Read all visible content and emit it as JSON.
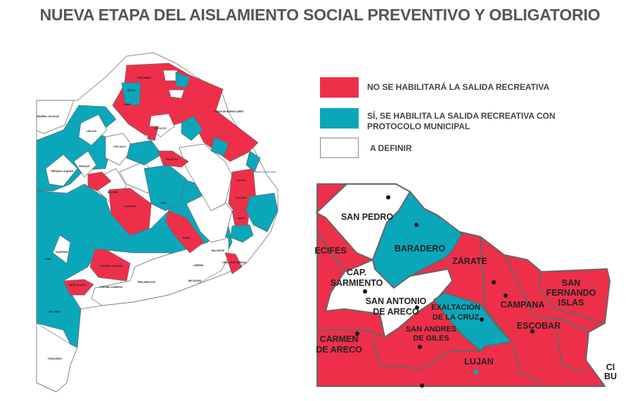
{
  "title": "NUEVA ETAPA DEL AISLAMIENTO SOCIAL PREVENTIVO Y OBLIGATORIO",
  "colors": {
    "red": "#ee2f4a",
    "teal": "#0aa7ba",
    "white": "#ffffff",
    "border": "#666666"
  },
  "legend": [
    {
      "label": "NO SE HABILITARÁ LA SALIDA RECREATIVA",
      "color": "#ee2f4a"
    },
    {
      "label_line1": "SÍ, SE HABILITA LA SALIDA RECREATIVA CON",
      "label_line2": "PROTOCOLO MUNICIPAL",
      "color": "#0aa7ba"
    },
    {
      "label": "A DEFINIR",
      "color": "#ffffff"
    }
  ],
  "main_map": {
    "labels": [
      "GENERAL VILLEGAS",
      "LINCOLN",
      "9 DE JULIO",
      "TRENQUE LAUQUEN",
      "PEHUAJÓ",
      "BOLÍVAR",
      "OLAVARRÍA",
      "AZUL",
      "TANDIL",
      "CORONEL PRINGLES",
      "BAHÍA BLANCA",
      "VILLARINO",
      "PATAGONES",
      "SAAVEDRA",
      "PUÁN",
      "CORONEL DORREGO",
      "TRES ARROYOS",
      "NECOCHEA",
      "LOBERÍA",
      "BALCARCE",
      "GRAL. PUEYRREDON",
      "CHIVILCOY",
      "SALADILLO",
      "CASTELLI",
      "DOLORES",
      "MAIPÚ",
      "ROJAS",
      "JUNÍN",
      "PERGAMINO",
      "CIUDAD DE BUENOS AIRES",
      "Bahía Samborombón"
    ]
  },
  "inset_map": {
    "labels": {
      "san_pedro": "SAN PEDRO",
      "baradero": "BARADERO",
      "zarate": "ZÁRATE",
      "cap_sarmiento_1": "CAP.",
      "cap_sarmiento_2": "SARMIENTO",
      "san_antonio_1": "SAN ANTONIO",
      "san_antonio_2": "DE ARECO",
      "exaltacion_1": "EXALTACIÓN",
      "exaltacion_2": "DE LA CRUZ",
      "san_fernando_1": "SAN",
      "san_fernando_2": "FERNANDO",
      "san_fernando_3": "ISLAS",
      "campana": "CAMPANA",
      "escobar": "ESCOBAR",
      "san_andres_1": "SAN ANDRES",
      "san_andres_2": "DE GILES",
      "carmen_1": "CARMEN",
      "carmen_2": "DE ARECO",
      "lujan": "LUJAN",
      "arrecifes_partial": "ECIFES",
      "caba_partial_1": "CI",
      "caba_partial_2": "BU"
    }
  }
}
